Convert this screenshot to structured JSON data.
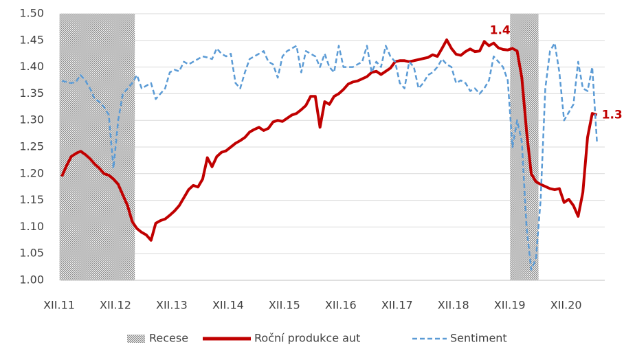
{
  "chart_data": {
    "type": "line",
    "categories": [
      "XII.11",
      null,
      null,
      null,
      null,
      null,
      null,
      null,
      null,
      null,
      null,
      null,
      "XII.12",
      null,
      null,
      null,
      null,
      null,
      null,
      null,
      null,
      null,
      null,
      null,
      "XII.13",
      null,
      null,
      null,
      null,
      null,
      null,
      null,
      null,
      null,
      null,
      null,
      "XII.14",
      null,
      null,
      null,
      null,
      null,
      null,
      null,
      null,
      null,
      null,
      null,
      "XII.15",
      null,
      null,
      null,
      null,
      null,
      null,
      null,
      null,
      null,
      null,
      null,
      "XII.16",
      null,
      null,
      null,
      null,
      null,
      null,
      null,
      null,
      null,
      null,
      null,
      "XII.17",
      null,
      null,
      null,
      null,
      null,
      null,
      null,
      null,
      null,
      null,
      null,
      "XII.18",
      null,
      null,
      null,
      null,
      null,
      null,
      null,
      null,
      null,
      null,
      null,
      "XII.19",
      null,
      null,
      null,
      null,
      null,
      null,
      null,
      null,
      null,
      null,
      null,
      "XII.20",
      null,
      null,
      null,
      null,
      null,
      null
    ],
    "series": [
      {
        "name": "Recese",
        "kind": "band",
        "color": "#a6a6a6",
        "values": [
          1.5,
          1.5,
          1.5,
          1.5,
          1.5,
          1.5,
          1.5,
          1.5,
          1.5,
          1.5,
          1.5,
          1.5,
          1.5,
          1.5,
          1.5,
          1.5,
          null,
          null,
          null,
          null,
          null,
          null,
          null,
          null,
          null,
          null,
          null,
          null,
          null,
          null,
          null,
          null,
          null,
          null,
          null,
          null,
          null,
          null,
          null,
          null,
          null,
          null,
          null,
          null,
          null,
          null,
          null,
          null,
          null,
          null,
          null,
          null,
          null,
          null,
          null,
          null,
          null,
          null,
          null,
          null,
          null,
          null,
          null,
          null,
          null,
          null,
          null,
          null,
          null,
          null,
          null,
          null,
          null,
          null,
          null,
          null,
          null,
          null,
          null,
          null,
          null,
          null,
          null,
          null,
          null,
          null,
          null,
          null,
          null,
          null,
          null,
          null,
          null,
          null,
          null,
          null,
          1.5,
          1.5,
          1.5,
          1.5,
          1.5,
          1.5,
          null,
          null,
          null,
          null,
          null,
          null,
          null,
          null,
          null,
          null,
          null,
          null,
          null
        ]
      },
      {
        "name": "Roční produkce aut",
        "kind": "line",
        "color": "#c00000",
        "dash": false,
        "values": [
          1.195,
          1.215,
          1.232,
          1.238,
          1.242,
          1.236,
          1.228,
          1.218,
          1.21,
          1.2,
          1.197,
          1.19,
          1.18,
          1.16,
          1.14,
          1.11,
          1.097,
          1.09,
          1.085,
          1.075,
          1.107,
          1.112,
          1.115,
          1.122,
          1.13,
          1.14,
          1.155,
          1.17,
          1.178,
          1.175,
          1.19,
          1.23,
          1.213,
          1.232,
          1.24,
          1.243,
          1.25,
          1.257,
          1.262,
          1.268,
          1.278,
          1.283,
          1.287,
          1.281,
          1.285,
          1.297,
          1.3,
          1.298,
          1.304,
          1.31,
          1.313,
          1.32,
          1.328,
          1.345,
          1.345,
          1.287,
          1.335,
          1.33,
          1.345,
          1.35,
          1.358,
          1.368,
          1.372,
          1.374,
          1.378,
          1.382,
          1.39,
          1.392,
          1.386,
          1.392,
          1.398,
          1.41,
          1.412,
          1.412,
          1.41,
          1.412,
          1.414,
          1.416,
          1.418,
          1.423,
          1.42,
          1.435,
          1.451,
          1.435,
          1.424,
          1.422,
          1.429,
          1.434,
          1.429,
          1.43,
          1.448,
          1.44,
          1.445,
          1.436,
          1.433,
          1.432,
          1.435,
          1.43,
          1.38,
          1.28,
          1.2,
          1.185,
          1.18,
          1.176,
          1.172,
          1.17,
          1.172,
          1.146,
          1.152,
          1.14,
          1.12,
          1.165,
          1.268,
          1.313,
          1.31
        ],
        "value_labels": [
          null,
          null,
          null,
          null,
          null,
          null,
          null,
          null,
          null,
          null,
          null,
          null,
          null,
          null,
          null,
          null,
          null,
          null,
          null,
          null,
          null,
          null,
          null,
          null,
          null,
          null,
          null,
          null,
          null,
          null,
          null,
          null,
          null,
          null,
          null,
          null,
          null,
          null,
          null,
          null,
          null,
          null,
          null,
          null,
          null,
          null,
          null,
          null,
          null,
          null,
          null,
          null,
          null,
          null,
          null,
          null,
          null,
          null,
          null,
          null,
          null,
          null,
          null,
          null,
          null,
          null,
          null,
          null,
          null,
          null,
          null,
          null,
          null,
          null,
          null,
          null,
          null,
          null,
          null,
          null,
          null,
          null,
          null,
          null,
          null,
          null,
          null,
          null,
          null,
          null,
          null,
          null,
          null,
          null,
          null,
          null,
          "1.4",
          null,
          null,
          null,
          null,
          null,
          null,
          null,
          null,
          null,
          null,
          null,
          null,
          null,
          null,
          null,
          null,
          null,
          "1.3"
        ]
      },
      {
        "name": "Sentiment",
        "kind": "line",
        "color": "#5b9bd5",
        "dash": true,
        "values": [
          1.374,
          1.372,
          1.37,
          1.372,
          1.385,
          1.375,
          1.36,
          1.34,
          1.335,
          1.325,
          1.31,
          1.21,
          1.3,
          1.35,
          1.36,
          1.37,
          1.385,
          1.36,
          1.365,
          1.37,
          1.34,
          1.35,
          1.36,
          1.39,
          1.395,
          1.392,
          1.41,
          1.405,
          1.41,
          1.415,
          1.42,
          1.418,
          1.415,
          1.435,
          1.425,
          1.42,
          1.425,
          1.37,
          1.36,
          1.39,
          1.415,
          1.42,
          1.425,
          1.43,
          1.41,
          1.405,
          1.38,
          1.42,
          1.43,
          1.435,
          1.44,
          1.39,
          1.43,
          1.425,
          1.42,
          1.4,
          1.425,
          1.4,
          1.39,
          1.44,
          1.4,
          1.4,
          1.4,
          1.405,
          1.41,
          1.44,
          1.39,
          1.41,
          1.4,
          1.44,
          1.42,
          1.41,
          1.37,
          1.36,
          1.41,
          1.4,
          1.36,
          1.37,
          1.385,
          1.39,
          1.4,
          1.415,
          1.405,
          1.4,
          1.37,
          1.375,
          1.37,
          1.355,
          1.36,
          1.35,
          1.36,
          1.375,
          1.42,
          1.41,
          1.4,
          1.375,
          1.25,
          1.3,
          1.26,
          1.1,
          1.02,
          1.04,
          1.15,
          1.36,
          1.43,
          1.445,
          1.39,
          1.3,
          1.315,
          1.33,
          1.41,
          1.36,
          1.355,
          1.4,
          1.26
        ]
      }
    ],
    "ylim": [
      1,
      1.5
    ],
    "yticks": [
      {
        "value": 1,
        "label": "1.00"
      },
      1.05,
      {
        "value": 1.1,
        "label": "1.10"
      },
      1.15,
      {
        "value": 1.2,
        "label": "1.20"
      },
      1.25,
      {
        "value": 1.3,
        "label": "1.30"
      },
      1.35,
      {
        "value": 1.4,
        "label": "1.40"
      },
      1.45,
      {
        "value": 1.5,
        "label": "1.50"
      }
    ],
    "grid": true,
    "legend": "bottom"
  }
}
